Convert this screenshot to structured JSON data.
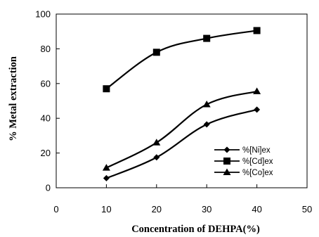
{
  "chart_data": {
    "type": "line",
    "title": "",
    "xlabel": "Concentration of DEHPA(%)",
    "ylabel": "% Metal extraction",
    "xlim": [
      0,
      50
    ],
    "ylim": [
      0,
      100
    ],
    "xticks": [
      "0",
      "10",
      "20",
      "30",
      "40",
      "50"
    ],
    "yticks": [
      "0",
      "20",
      "40",
      "60",
      "80",
      "100"
    ],
    "grid": false,
    "legend_position": "bottom-right",
    "x": [
      10,
      20,
      30,
      40
    ],
    "series": [
      {
        "name": "%[Ni]ex",
        "marker": "diamond",
        "color": "#000000",
        "values": [
          5.5,
          17.5,
          36.5,
          45
        ]
      },
      {
        "name": "%[Cd]ex",
        "marker": "square",
        "color": "#000000",
        "values": [
          57,
          78,
          86,
          90.5
        ]
      },
      {
        "name": "%[Co]ex",
        "marker": "triangle",
        "color": "#000000",
        "values": [
          11.5,
          26,
          48,
          55.5
        ]
      }
    ]
  }
}
